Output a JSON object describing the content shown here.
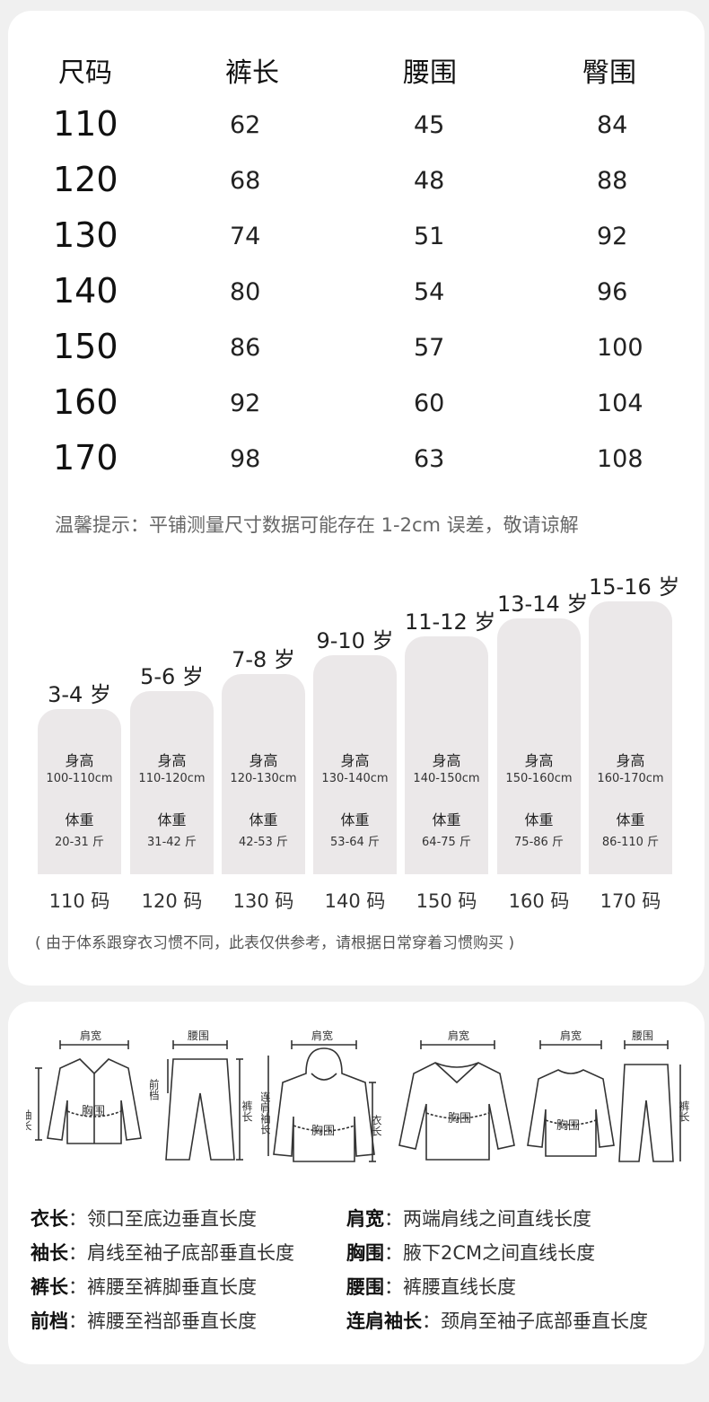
{
  "size_table": {
    "headers": [
      "尺码",
      "裤长",
      "腰围",
      "臀围"
    ],
    "rows": [
      {
        "size": "110",
        "length": "62",
        "waist": "45",
        "hip": "84"
      },
      {
        "size": "120",
        "length": "68",
        "waist": "48",
        "hip": "88"
      },
      {
        "size": "130",
        "length": "74",
        "waist": "51",
        "hip": "92"
      },
      {
        "size": "140",
        "length": "80",
        "waist": "54",
        "hip": "96"
      },
      {
        "size": "150",
        "length": "86",
        "waist": "57",
        "hip": "100"
      },
      {
        "size": "160",
        "length": "92",
        "waist": "60",
        "hip": "104"
      },
      {
        "size": "170",
        "length": "98",
        "waist": "63",
        "hip": "108"
      }
    ],
    "tip": "温馨提示：平铺测量尺寸数据可能存在 1-2cm 误差，敬请谅解"
  },
  "age_chart": {
    "height_label": "身高",
    "weight_label": "体重",
    "columns": [
      {
        "age": "3-4 岁",
        "height": "100-110cm",
        "weight": "20-31 斤",
        "code": "110 码"
      },
      {
        "age": "5-6 岁",
        "height": "110-120cm",
        "weight": "31-42 斤",
        "code": "120 码"
      },
      {
        "age": "7-8 岁",
        "height": "120-130cm",
        "weight": "42-53 斤",
        "code": "130 码"
      },
      {
        "age": "9-10 岁",
        "height": "130-140cm",
        "weight": "53-64 斤",
        "code": "140 码"
      },
      {
        "age": "11-12 岁",
        "height": "140-150cm",
        "weight": "64-75 斤",
        "code": "150 码"
      },
      {
        "age": "13-14 岁",
        "height": "150-160cm",
        "weight": "75-86 斤",
        "code": "160 码"
      },
      {
        "age": "15-16 岁",
        "height": "160-170cm",
        "weight": "86-110 斤",
        "code": "170 码"
      }
    ],
    "note": "( 由于体系跟穿衣习惯不同，此表仅供参考，请根据日常穿着习惯购买 )"
  },
  "illustration_labels": {
    "shoulder": "肩宽",
    "waist": "腰围",
    "chest": "胸围",
    "sleeve": "袖长",
    "crotch": "前档",
    "pants_length": "裤长",
    "raglan_sleeve": "连肩袖长",
    "coat_length": "衣长"
  },
  "definitions": [
    {
      "term": "衣长",
      "text": "领口至底边垂直长度"
    },
    {
      "term": "肩宽",
      "text": "两端肩线之间直线长度"
    },
    {
      "term": "袖长",
      "text": "肩线至袖子底部垂直长度"
    },
    {
      "term": "胸围",
      "text": "腋下2CM之间直线长度"
    },
    {
      "term": "裤长",
      "text": "裤腰至裤脚垂直长度"
    },
    {
      "term": "腰围",
      "text": "裤腰直线长度"
    },
    {
      "term": "前档",
      "text": "裤腰至裆部垂直长度"
    },
    {
      "term": "连肩袖长",
      "text": "颈肩至袖子底部垂直长度"
    }
  ]
}
